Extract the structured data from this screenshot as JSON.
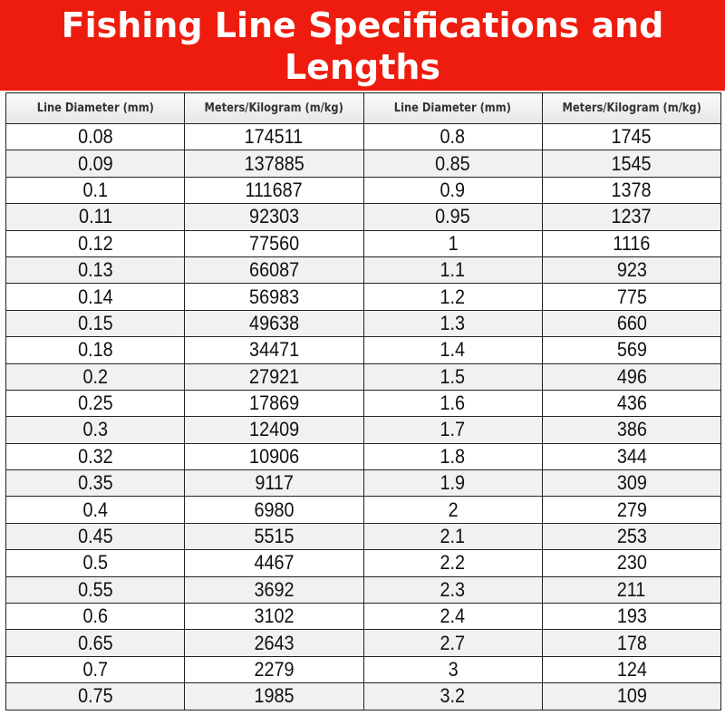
{
  "title": "Fishing Line Specifications and Lengths",
  "table": {
    "headers": [
      "Line Diameter (mm)",
      "Meters/Kilogram (m/kg)",
      "Line Diameter (mm)",
      "Meters/Kilogram (m/kg)"
    ],
    "rows": [
      [
        "0.08",
        "174511",
        "0.8",
        "1745"
      ],
      [
        "0.09",
        "137885",
        "0.85",
        "1545"
      ],
      [
        "0.1",
        "111687",
        "0.9",
        "1378"
      ],
      [
        "0.11",
        "92303",
        "0.95",
        "1237"
      ],
      [
        "0.12",
        "77560",
        "1",
        "1116"
      ],
      [
        "0.13",
        "66087",
        "1.1",
        "923"
      ],
      [
        "0.14",
        "56983",
        "1.2",
        "775"
      ],
      [
        "0.15",
        "49638",
        "1.3",
        "660"
      ],
      [
        "0.18",
        "34471",
        "1.4",
        "569"
      ],
      [
        "0.2",
        "27921",
        "1.5",
        "496"
      ],
      [
        "0.25",
        "17869",
        "1.6",
        "436"
      ],
      [
        "0.3",
        "12409",
        "1.7",
        "386"
      ],
      [
        "0.32",
        "10906",
        "1.8",
        "344"
      ],
      [
        "0.35",
        "9117",
        "1.9",
        "309"
      ],
      [
        "0.4",
        "6980",
        "2",
        "279"
      ],
      [
        "0.45",
        "5515",
        "2.1",
        "253"
      ],
      [
        "0.5",
        "4467",
        "2.2",
        "230"
      ],
      [
        "0.55",
        "3692",
        "2.3",
        "211"
      ],
      [
        "0.6",
        "3102",
        "2.4",
        "193"
      ],
      [
        "0.65",
        "2643",
        "2.7",
        "178"
      ],
      [
        "0.7",
        "2279",
        "3",
        "124"
      ],
      [
        "0.75",
        "1985",
        "3.2",
        "109"
      ]
    ]
  },
  "colors": {
    "banner": "#ee1c0e",
    "row_alt": "#f1f1f1"
  }
}
